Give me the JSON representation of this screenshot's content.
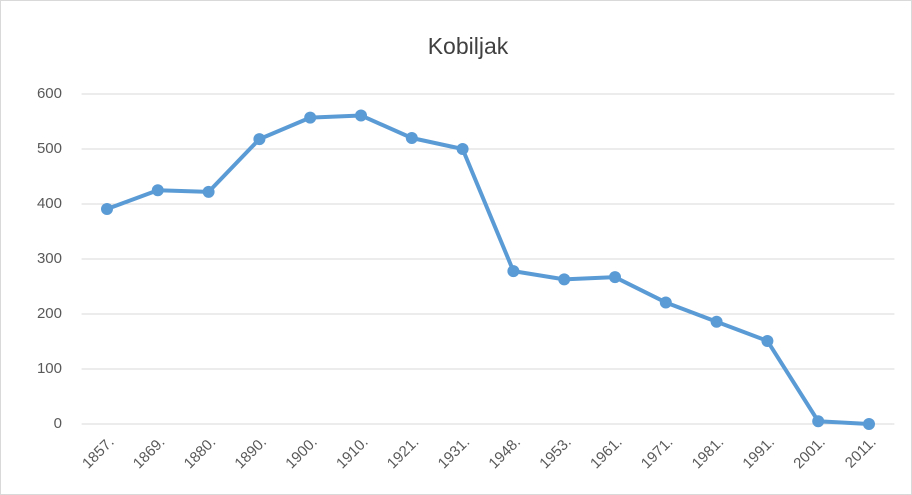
{
  "chart_data": {
    "type": "line",
    "title": "Kobiljak",
    "categories": [
      "1857.",
      "1869.",
      "1880.",
      "1890.",
      "1900.",
      "1910.",
      "1921.",
      "1931.",
      "1948.",
      "1953.",
      "1961.",
      "1971.",
      "1981.",
      "1991.",
      "2001.",
      "2011."
    ],
    "values": [
      391,
      425,
      422,
      518,
      557,
      561,
      520,
      500,
      278,
      263,
      267,
      221,
      186,
      151,
      5,
      0
    ],
    "color": "#5b9bd5",
    "ylim": [
      0,
      600
    ],
    "yticks": [
      0,
      100,
      200,
      300,
      400,
      500,
      600
    ],
    "grid": true
  }
}
